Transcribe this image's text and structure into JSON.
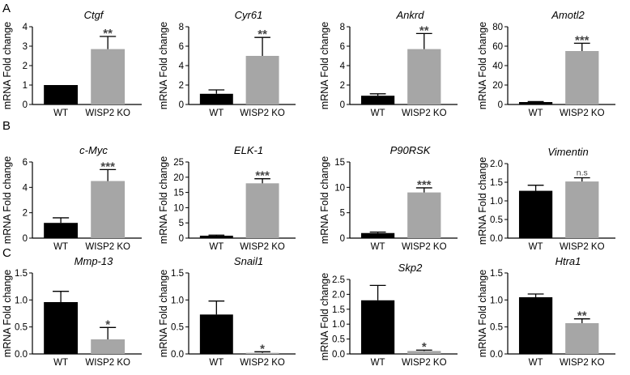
{
  "panel_labels": [
    "A",
    "B",
    "C"
  ],
  "colors": {
    "wt": "#000000",
    "ko": "#a6a6a6",
    "axis": "#000000",
    "error": "#000000"
  },
  "chart_data": [
    {
      "type": "bar",
      "row": 0,
      "col": 0,
      "title": "Ctgf",
      "ylabel": "mRNA Fold change",
      "categories": [
        "WT",
        "WISP2 KO"
      ],
      "values": [
        1.0,
        2.85
      ],
      "errors": [
        0.0,
        0.65
      ],
      "ylim": [
        0,
        4
      ],
      "yticks": [
        "0",
        "1",
        "2",
        "3",
        "4"
      ],
      "significance": "**"
    },
    {
      "type": "bar",
      "row": 0,
      "col": 1,
      "title": "Cyr61",
      "ylabel": "mRNA Fold change",
      "categories": [
        "WT",
        "WISP2 KO"
      ],
      "values": [
        1.1,
        5.0
      ],
      "errors": [
        0.4,
        1.9
      ],
      "ylim": [
        0,
        8
      ],
      "yticks": [
        "0",
        "2",
        "4",
        "6",
        "8"
      ],
      "significance": "**"
    },
    {
      "type": "bar",
      "row": 0,
      "col": 2,
      "title": "Ankrd",
      "ylabel": "mRNA Fold change",
      "categories": [
        "WT",
        "WISP2 KO"
      ],
      "values": [
        0.9,
        5.7
      ],
      "errors": [
        0.2,
        1.6
      ],
      "ylim": [
        0,
        8
      ],
      "yticks": [
        "0",
        "2",
        "4",
        "6",
        "8"
      ],
      "significance": "**"
    },
    {
      "type": "bar",
      "row": 0,
      "col": 3,
      "title": "Amotl2",
      "ylabel": "mRNA Fold change",
      "categories": [
        "WT",
        "WISP2 KO"
      ],
      "values": [
        2.5,
        55
      ],
      "errors": [
        0.5,
        8
      ],
      "ylim": [
        0,
        80
      ],
      "yticks": [
        "0",
        "20",
        "40",
        "60",
        "80"
      ],
      "significance": "***"
    },
    {
      "type": "bar",
      "row": 1,
      "col": 0,
      "title": "c-Myc",
      "ylabel": "mRNA Fold change",
      "categories": [
        "WT",
        "WISP2 KO"
      ],
      "values": [
        1.2,
        4.5
      ],
      "errors": [
        0.4,
        0.9
      ],
      "ylim": [
        0,
        6
      ],
      "yticks": [
        "0",
        "2",
        "4",
        "6"
      ],
      "significance": "***"
    },
    {
      "type": "bar",
      "row": 1,
      "col": 1,
      "title": "ELK-1",
      "ylabel": "mRNA Fold change",
      "categories": [
        "WT",
        "WISP2 KO"
      ],
      "values": [
        0.8,
        18
      ],
      "errors": [
        0.2,
        1.5
      ],
      "ylim": [
        0,
        25
      ],
      "yticks": [
        "0",
        "5",
        "10",
        "15",
        "20",
        "25"
      ],
      "significance": "***"
    },
    {
      "type": "bar",
      "row": 1,
      "col": 2,
      "title": "P90RSK",
      "ylabel": "mRNA Fold change",
      "categories": [
        "WT",
        "WISP2 KO"
      ],
      "values": [
        1.0,
        9.0
      ],
      "errors": [
        0.2,
        0.9
      ],
      "ylim": [
        0,
        15
      ],
      "yticks": [
        "0",
        "5",
        "10",
        "15"
      ],
      "significance": "***"
    },
    {
      "type": "bar",
      "row": 1,
      "col": 3,
      "title": "Vimentin",
      "ylabel": "mRNA Fold change",
      "categories": [
        "WT",
        "WISP2 KO"
      ],
      "values": [
        1.27,
        1.52
      ],
      "errors": [
        0.15,
        0.1
      ],
      "ylim": [
        0,
        2.0
      ],
      "yticks": [
        "0.0",
        "0.5",
        "1.0",
        "1.5",
        "2.0"
      ],
      "significance": "n.s"
    },
    {
      "type": "bar",
      "row": 2,
      "col": 0,
      "title": "Mmp-13",
      "ylabel": "mRNA Fold change",
      "categories": [
        "WT",
        "WISP2 KO"
      ],
      "values": [
        0.96,
        0.27
      ],
      "errors": [
        0.2,
        0.22
      ],
      "ylim": [
        0,
        1.5
      ],
      "yticks": [
        "0.0",
        "0.5",
        "1.0",
        "1.5"
      ],
      "significance": "*"
    },
    {
      "type": "bar",
      "row": 2,
      "col": 1,
      "title": "Snail1",
      "ylabel": "mRNA Fold change",
      "categories": [
        "WT",
        "WISP2 KO"
      ],
      "values": [
        0.73,
        0.02
      ],
      "errors": [
        0.25,
        0.02
      ],
      "ylim": [
        0,
        1.5
      ],
      "yticks": [
        "0.0",
        "0.5",
        "1.0",
        "1.5"
      ],
      "significance": "*"
    },
    {
      "type": "bar",
      "row": 2,
      "col": 2,
      "title": "Skp2",
      "ylabel": "mRNA Fold change",
      "categories": [
        "WT",
        "WISP2 KO"
      ],
      "values": [
        1.8,
        0.1
      ],
      "errors": [
        0.5,
        0.03
      ],
      "ylim": [
        0,
        2.5
      ],
      "yticks": [
        "0.0",
        "0.5",
        "1.0",
        "1.5",
        "2.0",
        "2.5"
      ],
      "significance": "*"
    },
    {
      "type": "bar",
      "row": 2,
      "col": 3,
      "title": "Htra1",
      "ylabel": "mRNA Fold change",
      "categories": [
        "WT",
        "WISP2 KO"
      ],
      "values": [
        1.05,
        0.57
      ],
      "errors": [
        0.06,
        0.08
      ],
      "ylim": [
        0,
        1.5
      ],
      "yticks": [
        "0.0",
        "0.5",
        "1.0",
        "1.5"
      ],
      "significance": "**"
    }
  ]
}
